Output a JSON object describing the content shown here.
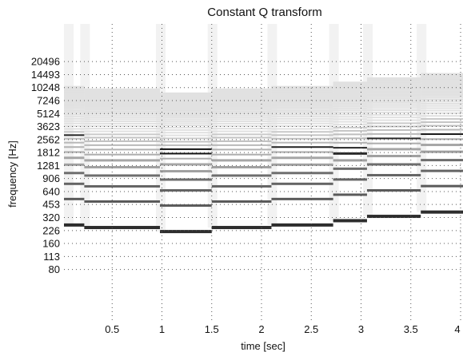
{
  "chart_data": {
    "type": "heatmap",
    "title": "Constant Q transform",
    "xlabel": "time [sec]",
    "ylabel": "frequency [Hz]",
    "xlim": [
      0,
      4
    ],
    "x_ticks": [
      0.5,
      1,
      1.5,
      2,
      2.5,
      3,
      3.5,
      4
    ],
    "x_tick_labels": [
      "0.5",
      "1",
      "1.5",
      "2",
      "2.5",
      "3",
      "3.5",
      "4"
    ],
    "y_scale": "log",
    "ylim": [
      57,
      28000
    ],
    "y_ticks": [
      80,
      113,
      160,
      226,
      320,
      453,
      640,
      906,
      1281,
      1812,
      2562,
      3623,
      5124,
      7246,
      10248,
      14493,
      20496
    ],
    "y_tick_labels": [
      "80",
      "113",
      "160",
      "226",
      "320",
      "453",
      "640",
      "906",
      "1281",
      "1812",
      "2562",
      "3623",
      "5124",
      "7246",
      "10248",
      "14493",
      "20496"
    ],
    "grid": "dotted",
    "colormap": "grayscale (white = low, black = high)",
    "notes": [
      {
        "t_start": 0.0,
        "t_end": 0.22,
        "f0_hz": 262
      },
      {
        "t_start": 0.22,
        "t_end": 0.98,
        "f0_hz": 245
      },
      {
        "t_start": 0.98,
        "t_end": 1.5,
        "f0_hz": 220
      },
      {
        "t_start": 1.5,
        "t_end": 2.1,
        "f0_hz": 245
      },
      {
        "t_start": 2.1,
        "t_end": 2.72,
        "f0_hz": 262
      },
      {
        "t_start": 2.72,
        "t_end": 3.06,
        "f0_hz": 294
      },
      {
        "t_start": 3.06,
        "t_end": 3.6,
        "f0_hz": 330
      },
      {
        "t_start": 3.6,
        "t_end": 4.1,
        "f0_hz": 370
      }
    ]
  }
}
